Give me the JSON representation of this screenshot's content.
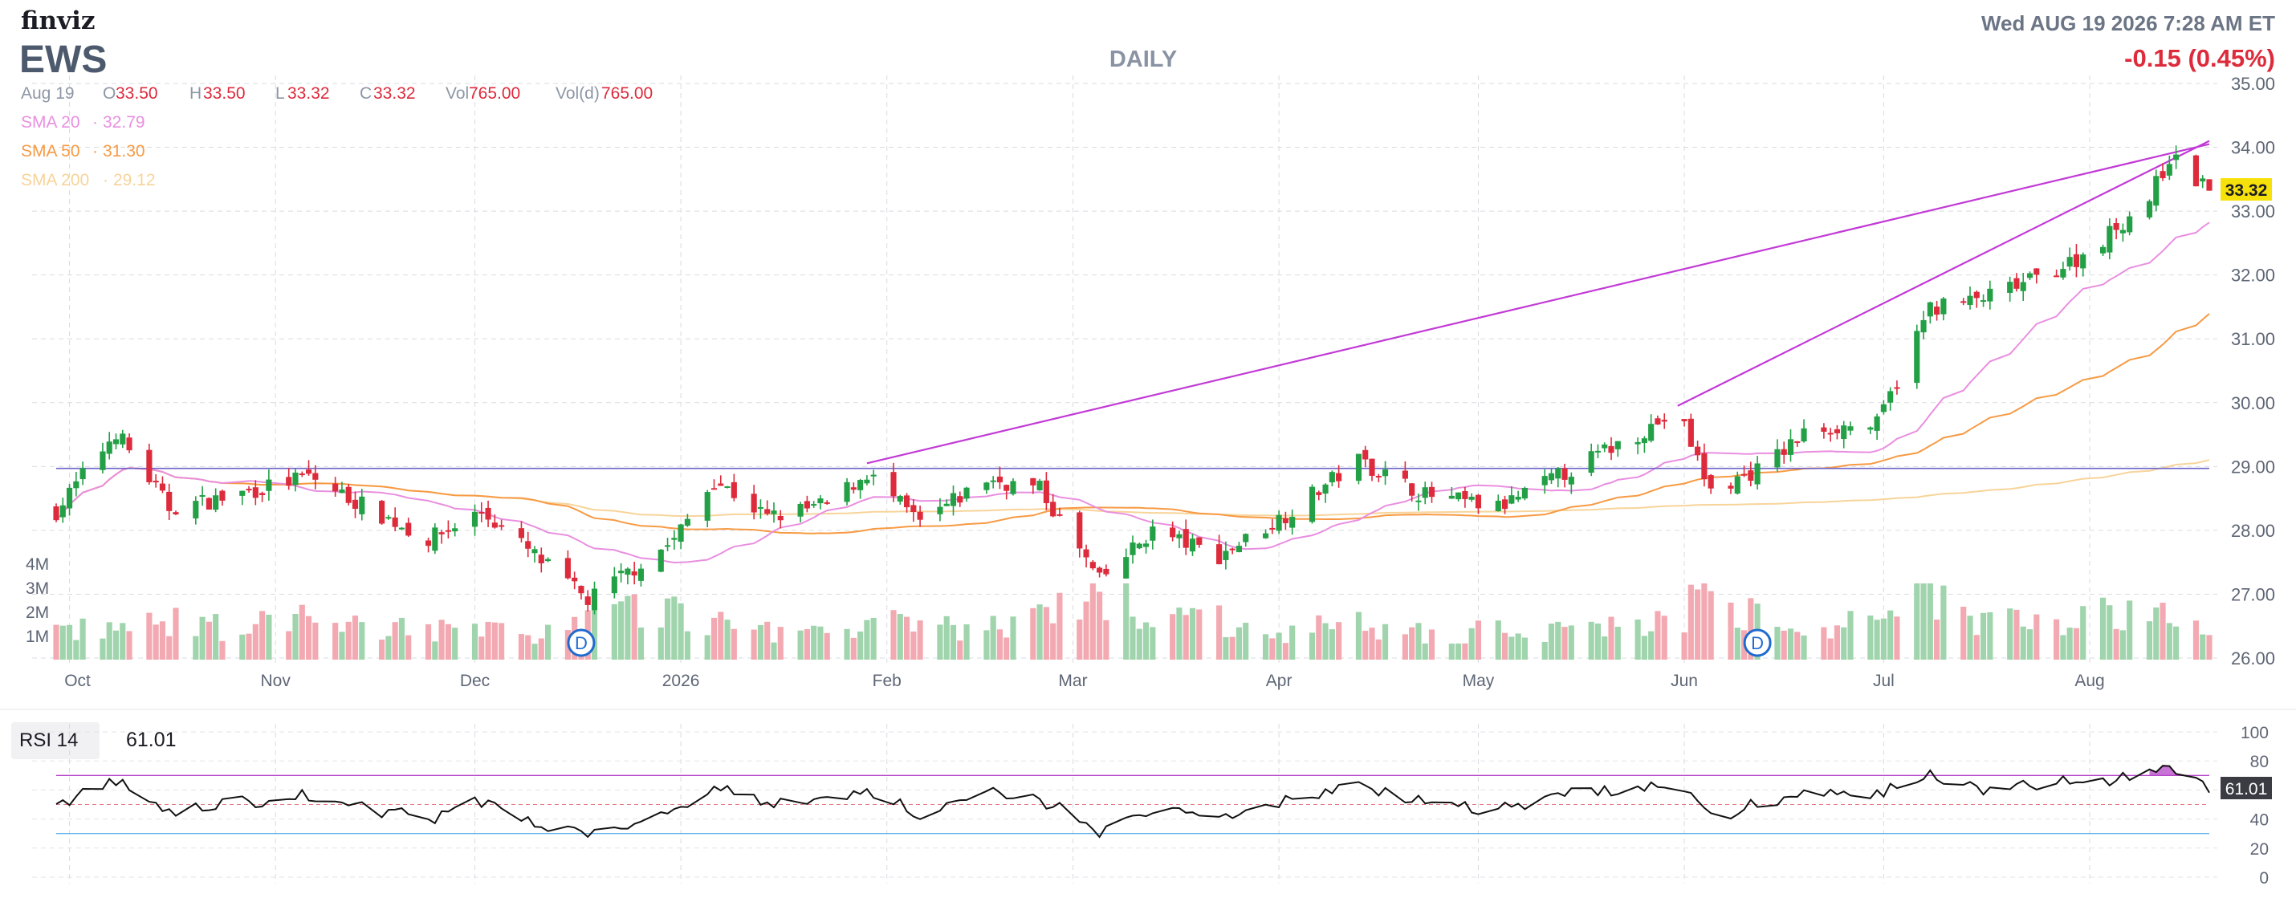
{
  "header": {
    "brand": "finviz",
    "ticker": "EWS",
    "timeframe": "DAILY",
    "datetime": "Wed AUG 19 2026 7:28 AM ET",
    "change": "-0.15 (0.45%)",
    "ohlc": {
      "date": "Aug 19",
      "open_label": "O",
      "open": "33.50",
      "high_label": "H",
      "high": "33.50",
      "low_label": "L",
      "low": "33.32",
      "close_label": "C",
      "close": "33.32",
      "vol_label": "Vol",
      "vol": "765.00",
      "vold_label": "Vol(d)",
      "vold": "765.00"
    },
    "sma": [
      {
        "label": "SMA 20",
        "value": "32.79",
        "color": "#e98fe0"
      },
      {
        "label": "SMA 50",
        "value": "31.30",
        "color": "#f79a44"
      },
      {
        "label": "SMA 200",
        "value": "29.12",
        "color": "#f7d49a"
      }
    ],
    "last_price": "33.32",
    "rsi_label": "RSI 14",
    "rsi_value": "61.01"
  },
  "colors": {
    "up": "#23a046",
    "down": "#dd2b3c",
    "vol_up": "#9fd4ac",
    "vol_down": "#f3a9b1",
    "trendline": "#c23ad6",
    "hline": "#6b63c9",
    "rsi_band": "#b545c9",
    "rsi_low": "#64b4e8",
    "accent_badge": "#f6e20a",
    "dividend": "#1e6bd0"
  },
  "chart_data": {
    "type": "candlestick",
    "y_axis": {
      "min": 26.0,
      "max": 35.0,
      "ticks": [
        "26.00",
        "27.00",
        "28.00",
        "29.00",
        "30.00",
        "31.00",
        "32.00",
        "33.00",
        "34.00",
        "35.00"
      ]
    },
    "x_axis": {
      "labels": [
        "Oct",
        "Nov",
        "Dec",
        "2026",
        "Feb",
        "Mar",
        "Apr",
        "May",
        "Jun",
        "Jul",
        "Aug"
      ]
    },
    "volume_axis": {
      "ticks": [
        "1M",
        "2M",
        "3M",
        "4M"
      ]
    },
    "rsi_axis": {
      "ticks": [
        "0",
        "20",
        "40",
        "60",
        "80",
        "100"
      ],
      "overbought": 70,
      "oversold": 30
    },
    "dividends": [
      "D",
      "D"
    ],
    "horizontal_line": 28.97,
    "trendlines": [
      {
        "from": [
          "2026-01-29",
          29.05
        ],
        "to": [
          "2026-08-19",
          34.05
        ]
      },
      {
        "from": [
          "2026-05-31",
          29.95
        ],
        "to": [
          "2026-08-19",
          34.1
        ]
      }
    ],
    "anchors": [
      [
        "2025-09-29",
        28.3,
        1.2,
        50
      ],
      [
        "2025-10-08",
        29.55,
        1.3,
        66
      ],
      [
        "2025-10-16",
        28.35,
        1.5,
        44
      ],
      [
        "2025-10-24",
        28.5,
        1.4,
        50
      ],
      [
        "2025-11-06",
        28.85,
        1.6,
        56
      ],
      [
        "2025-11-14",
        28.4,
        1.3,
        48
      ],
      [
        "2025-11-24",
        27.85,
        1.4,
        40
      ],
      [
        "2025-12-02",
        28.3,
        1.1,
        52
      ],
      [
        "2025-12-10",
        27.6,
        1.2,
        38
      ],
      [
        "2025-12-18",
        26.9,
        1.6,
        30
      ],
      [
        "2025-12-31",
        27.85,
        2.2,
        46
      ],
      [
        "2026-01-06",
        28.8,
        1.4,
        64
      ],
      [
        "2026-01-14",
        28.2,
        1.2,
        50
      ],
      [
        "2026-01-23",
        28.4,
        1.3,
        54
      ],
      [
        "2026-01-29",
        28.9,
        1.5,
        60
      ],
      [
        "2026-02-06",
        28.1,
        1.4,
        44
      ],
      [
        "2026-02-16",
        28.8,
        1.3,
        58
      ],
      [
        "2026-02-24",
        28.65,
        1.6,
        54
      ],
      [
        "2026-03-05",
        27.2,
        2.8,
        32
      ],
      [
        "2026-03-13",
        28.0,
        1.9,
        46
      ],
      [
        "2026-03-23",
        27.6,
        1.6,
        40
      ],
      [
        "2026-04-02",
        28.25,
        1.2,
        52
      ],
      [
        "2026-04-13",
        29.1,
        1.4,
        64
      ],
      [
        "2026-04-23",
        28.55,
        1.1,
        52
      ],
      [
        "2026-05-04",
        28.35,
        1.2,
        46
      ],
      [
        "2026-05-14",
        28.9,
        1.2,
        58
      ],
      [
        "2026-05-22",
        29.35,
        1.5,
        60
      ],
      [
        "2026-05-31",
        29.85,
        1.6,
        64
      ],
      [
        "2026-06-05",
        28.6,
        3.1,
        40
      ],
      [
        "2026-06-13",
        29.0,
        1.4,
        52
      ],
      [
        "2026-06-20",
        29.6,
        1.3,
        58
      ],
      [
        "2026-06-30",
        29.65,
        1.5,
        56
      ],
      [
        "2026-07-08",
        31.5,
        3.2,
        72
      ],
      [
        "2026-07-15",
        31.6,
        1.6,
        60
      ],
      [
        "2026-07-23",
        31.9,
        1.9,
        64
      ],
      [
        "2026-07-31",
        32.3,
        1.8,
        66
      ],
      [
        "2026-08-10",
        33.2,
        2.0,
        70
      ],
      [
        "2026-08-13",
        33.85,
        1.8,
        74
      ],
      [
        "2026-08-19",
        33.32,
        0.8,
        61
      ]
    ],
    "last_bar": {
      "open": 33.5,
      "high": 33.5,
      "low": 33.32,
      "close": 33.32
    }
  }
}
